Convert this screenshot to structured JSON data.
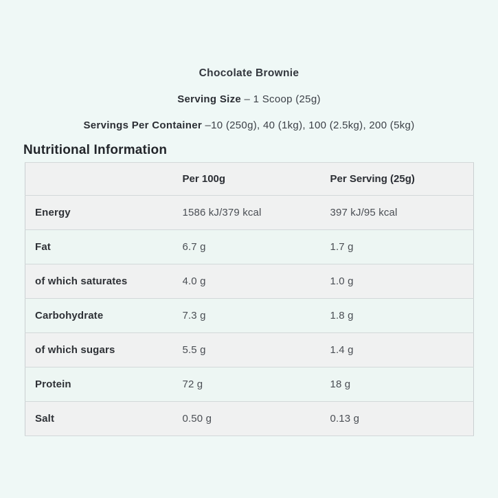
{
  "header": {
    "product_title": "Chocolate Brownie",
    "serving_size_label": "Serving Size",
    "serving_size_value": "– 1 Scoop (25g)",
    "servings_per_container_label": "Servings Per Container",
    "servings_per_container_value": "–10 (250g), 40 (1kg), 100 (2.5kg), 200 (5kg)"
  },
  "section": {
    "heading": "Nutritional Information"
  },
  "table": {
    "columns": {
      "col1": "",
      "col2": "Per 100g",
      "col3": "Per Serving (25g)"
    },
    "rows": [
      {
        "label": "Energy",
        "per_100g": "1586 kJ/379 kcal",
        "per_serving": "397 kJ/95 kcal"
      },
      {
        "label": "Fat",
        "per_100g": "6.7 g",
        "per_serving": "1.7 g"
      },
      {
        "label": "of which saturates",
        "per_100g": "4.0 g",
        "per_serving": "1.0 g"
      },
      {
        "label": "Carbohydrate",
        "per_100g": "7.3 g",
        "per_serving": "1.8 g"
      },
      {
        "label": "of which sugars",
        "per_100g": "5.5 g",
        "per_serving": "1.4 g"
      },
      {
        "label": "Protein",
        "per_100g": "72 g",
        "per_serving": "18 g"
      },
      {
        "label": "Salt",
        "per_100g": "0.50 g",
        "per_serving": "0.13 g"
      }
    ]
  },
  "colors": {
    "page_background": "#EFF8F6",
    "row_gray": "#F0F1F1",
    "row_mint": "#EDF6F3",
    "table_border": "#C9CFD1",
    "text_dark": "#2B2E34",
    "text_value": "#4A4E54"
  }
}
